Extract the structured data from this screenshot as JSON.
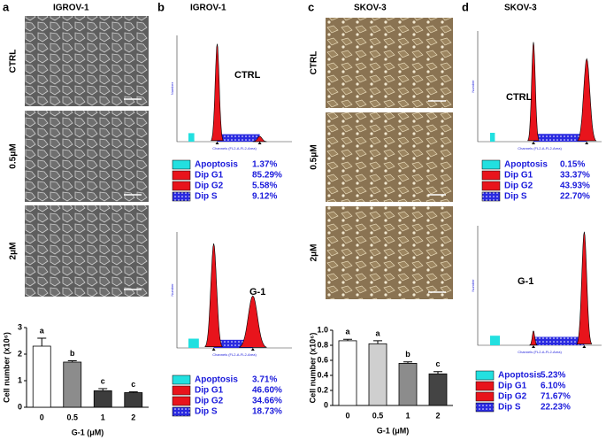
{
  "panels": [
    {
      "label": "a",
      "title": "IGROV-1",
      "rows": [
        "CTRL",
        "0.5μM",
        "2μM"
      ]
    },
    {
      "label": "b",
      "title": "IGROV-1",
      "histograms": [
        {
          "name": "CTRL",
          "xlabel": "Channels (FL2-A-FL2-Area)",
          "ylabel": "Number",
          "legend": [
            {
              "name": "Apoptosis",
              "value": "1.37%"
            },
            {
              "name": "Dip G1",
              "value": "85.29%"
            },
            {
              "name": "Dip G2",
              "value": "5.58%"
            },
            {
              "name": "Dip S",
              "value": "9.12%"
            }
          ]
        },
        {
          "name": "G-1",
          "xlabel": "Channels (FL2-A-FL2-Area)",
          "ylabel": "Number",
          "legend": [
            {
              "name": "Apoptosis",
              "value": "3.71%"
            },
            {
              "name": "Dip G1",
              "value": "46.60%"
            },
            {
              "name": "Dip G2",
              "value": "34.66%"
            },
            {
              "name": "Dip S",
              "value": "18.73%"
            }
          ]
        }
      ]
    },
    {
      "label": "c",
      "title": "SKOV-3",
      "rows": [
        "CTRL",
        "0.5μM",
        "2μM"
      ]
    },
    {
      "label": "d",
      "title": "SKOV-3",
      "histograms": [
        {
          "name": "CTRL",
          "xlabel": "Channels (FL2-A-FL2-Area)",
          "ylabel": "Number",
          "legend": [
            {
              "name": "Apoptosis",
              "value": "0.15%"
            },
            {
              "name": "Dip G1",
              "value": "33.37%"
            },
            {
              "name": "Dip G2",
              "value": "43.93%"
            },
            {
              "name": "Dip S",
              "value": "22.70%"
            }
          ]
        },
        {
          "name": "G-1",
          "xlabel": "Channels (FL2-A-FL2-Area)",
          "ylabel": "Number",
          "legend": [
            {
              "name": "Apoptosis",
              "value": "5.23%"
            },
            {
              "name": "Dip G1",
              "value": "6.10%"
            },
            {
              "name": "Dip G2",
              "value": "71.67%"
            },
            {
              "name": "Dip S",
              "value": "22.23%"
            }
          ]
        }
      ]
    }
  ],
  "chart_data": [
    {
      "type": "bar",
      "categories": [
        "0",
        "0.5",
        "1",
        "2"
      ],
      "values": [
        2.3,
        1.7,
        0.62,
        0.55
      ],
      "errors": [
        0.3,
        0.05,
        0.08,
        0.03
      ],
      "annotations": [
        "a",
        "b",
        "c",
        "c"
      ],
      "colors": [
        "#ffffff",
        "#8c8c8c",
        "#3c3c3c",
        "#3c3c3c"
      ],
      "xlabel": "G-1 (μM)",
      "ylabel": "Cell number (x10⁶)",
      "ylim": [
        0,
        3
      ],
      "yticks": [
        0,
        1,
        2,
        3
      ]
    },
    {
      "type": "bar",
      "categories": [
        "0",
        "0.5",
        "1",
        "2"
      ],
      "values": [
        0.86,
        0.82,
        0.56,
        0.42
      ],
      "errors": [
        0.02,
        0.04,
        0.02,
        0.03
      ],
      "annotations": [
        "a",
        "a",
        "b",
        "c"
      ],
      "colors": [
        "#ffffff",
        "#cfcfcf",
        "#8c8c8c",
        "#444444"
      ],
      "xlabel": "G-1 (μM)",
      "ylabel": "Cell number (x10⁶)",
      "ylim": [
        0,
        1
      ],
      "yticks": [
        0,
        0.2,
        0.4,
        0.6,
        0.8,
        {
          "value": 1,
          "label": "1.0"
        }
      ]
    }
  ]
}
